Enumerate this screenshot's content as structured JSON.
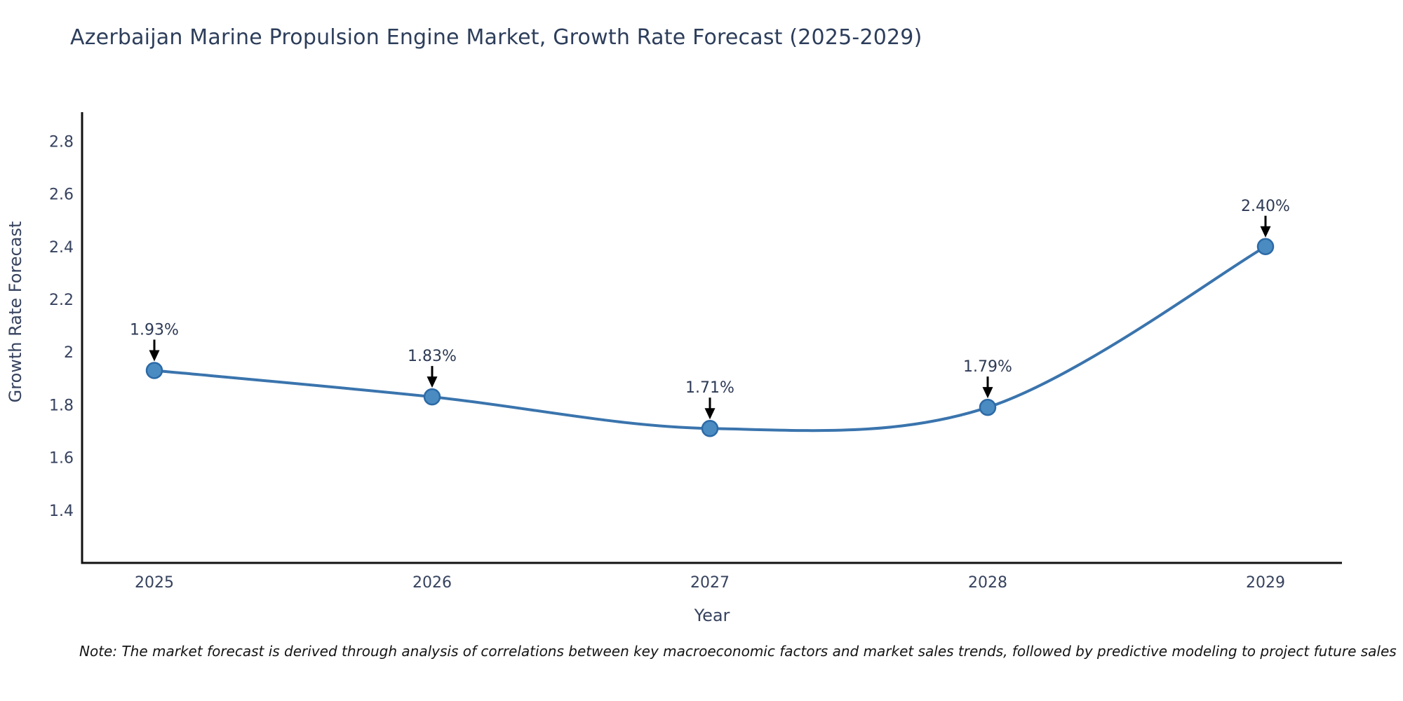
{
  "title": "Azerbaijan Marine Propulsion Engine Market, Growth Rate Forecast (2025-2029)",
  "note": "Note: The market forecast is derived through analysis of correlations between key macroeconomic factors and market sales trends, followed by predictive modeling to project future sales",
  "chart_data": {
    "type": "line",
    "title": "Azerbaijan Marine Propulsion Engine Market, Growth Rate Forecast (2025-2029)",
    "xlabel": "Year",
    "ylabel": "Growth Rate Forecast",
    "categories": [
      "2025",
      "2026",
      "2027",
      "2028",
      "2029"
    ],
    "series": [
      {
        "name": "Growth Rate Forecast",
        "values": [
          1.93,
          1.83,
          1.71,
          1.79,
          2.4
        ],
        "point_labels": [
          "1.93%",
          "1.83%",
          "1.71%",
          "1.79%",
          "2.40%"
        ]
      }
    ],
    "yticks": [
      1.4,
      1.6,
      1.8,
      2,
      2.2,
      2.4,
      2.6,
      2.8
    ],
    "ylim": [
      1.2,
      2.91
    ],
    "grid": false,
    "legend_position": "none",
    "line_shape": "spline",
    "annotation_style": "value label with down arrow to point",
    "colors": {
      "line": "#3a74ad",
      "marker_fill": "#4a8bc2",
      "marker_stroke": "#2c6aa6",
      "annotation_arrow": "#000000",
      "axis": "#111111",
      "text": "#36425e"
    }
  }
}
